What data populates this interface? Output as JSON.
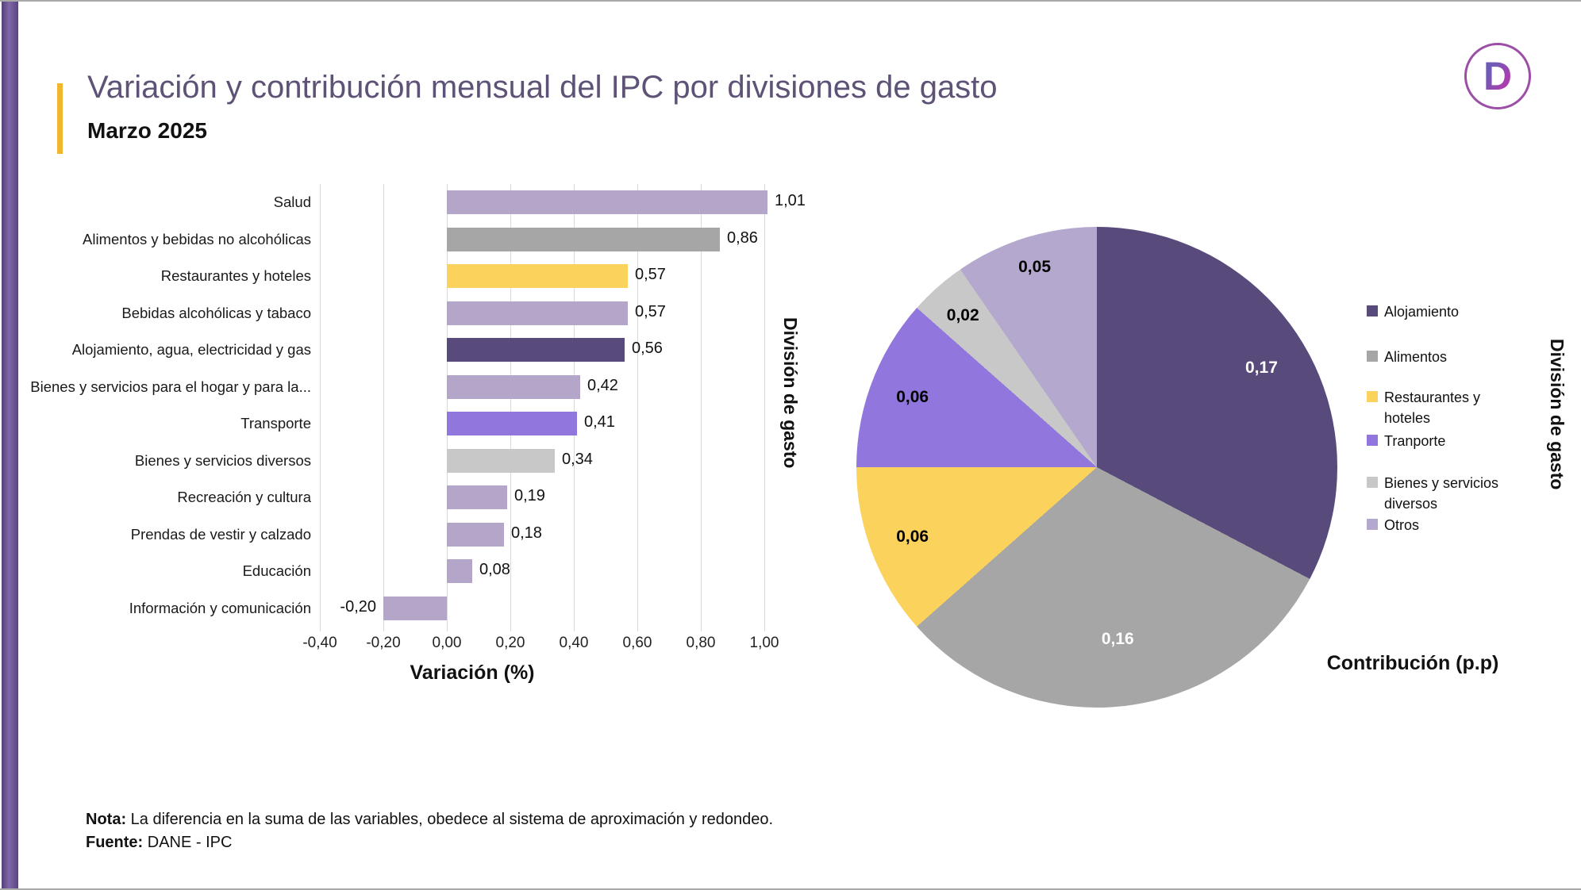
{
  "page": {
    "title": "Variación  y contribución mensual del IPC por divisiones de gasto",
    "subtitle": "Marzo 2025",
    "logo_letter": "D",
    "note_label": "Nota:",
    "note_text": " La diferencia en la suma de las variables, obedece al sistema de aproximación y redondeo.",
    "source_label": "Fuente:",
    "source_text": " DANE - IPC"
  },
  "colors": {
    "title": "#5e5277",
    "accent_yellow": "#f0b62e",
    "grid": "#d9d9d9",
    "logo_ring": "#9b4fa5",
    "dark_purple": "#584a7b",
    "light_purple": "#b3a6c9",
    "bright_purple": "#9176dd",
    "yellow": "#fbd25c",
    "gray": "#a6a6a6",
    "light_gray": "#c8c8c8"
  },
  "chart_data": [
    {
      "type": "bar",
      "orientation": "horizontal",
      "xlabel": "Variación (%)",
      "ylabel": "División de gasto",
      "xlim": [
        -0.4,
        1.0
      ],
      "grid": true,
      "xtick_values": [
        -0.4,
        -0.2,
        0.0,
        0.2,
        0.4,
        0.6,
        0.8,
        1.0
      ],
      "xtick_labels": [
        "-0,40",
        "-0,20",
        "0,00",
        "0,20",
        "0,40",
        "0,60",
        "0,80",
        "1,00"
      ],
      "categories": [
        "Salud",
        "Alimentos y bebidas no alcohólicas",
        "Restaurantes y hoteles",
        "Bebidas alcohólicas y tabaco",
        "Alojamiento, agua, electricidad y gas",
        "Bienes y servicios para el hogar y para la...",
        "Transporte",
        "Bienes y servicios diversos",
        "Recreación y cultura",
        "Prendas de vestir y calzado",
        "Educación",
        "Información y comunicación"
      ],
      "values": [
        1.01,
        0.86,
        0.57,
        0.57,
        0.56,
        0.42,
        0.41,
        0.34,
        0.19,
        0.18,
        0.08,
        -0.2
      ],
      "value_labels": [
        "1,01",
        "0,86",
        "0,57",
        "0,57",
        "0,56",
        "0,42",
        "0,41",
        "0,34",
        "0,19",
        "0,18",
        "0,08",
        "-0,20"
      ],
      "bar_colors": [
        "#b3a6c9",
        "#a6a6a6",
        "#fbd25c",
        "#b3a6c9",
        "#584a7b",
        "#b3a6c9",
        "#9176dd",
        "#c8c8c8",
        "#b3a6c9",
        "#b3a6c9",
        "#b3a6c9",
        "#b3a6c9"
      ]
    },
    {
      "type": "pie",
      "xlabel": "Contribución (p.p)",
      "ylabel": "División de gasto",
      "legend_position": "right",
      "labels": [
        "Alojamiento",
        "Alimentos",
        "Restaurantes y hoteles",
        "Tranporte",
        "Bienes y servicios diversos",
        "Otros"
      ],
      "values": [
        0.17,
        0.16,
        0.06,
        0.06,
        0.02,
        0.05
      ],
      "value_labels": [
        "0,17",
        "0,16",
        "0,06",
        "0,06",
        "0,02",
        "0,05"
      ],
      "colors": [
        "#584a7b",
        "#a6a6a6",
        "#fbd25c",
        "#9176dd",
        "#c8c8c8",
        "#b5a8ce"
      ],
      "value_label_colors": [
        "#ffffff",
        "#ffffff",
        "#000000",
        "#000000",
        "#000000",
        "#000000"
      ],
      "label_radius": [
        0.8,
        0.72,
        0.82,
        0.82,
        0.84,
        0.87
      ]
    }
  ]
}
